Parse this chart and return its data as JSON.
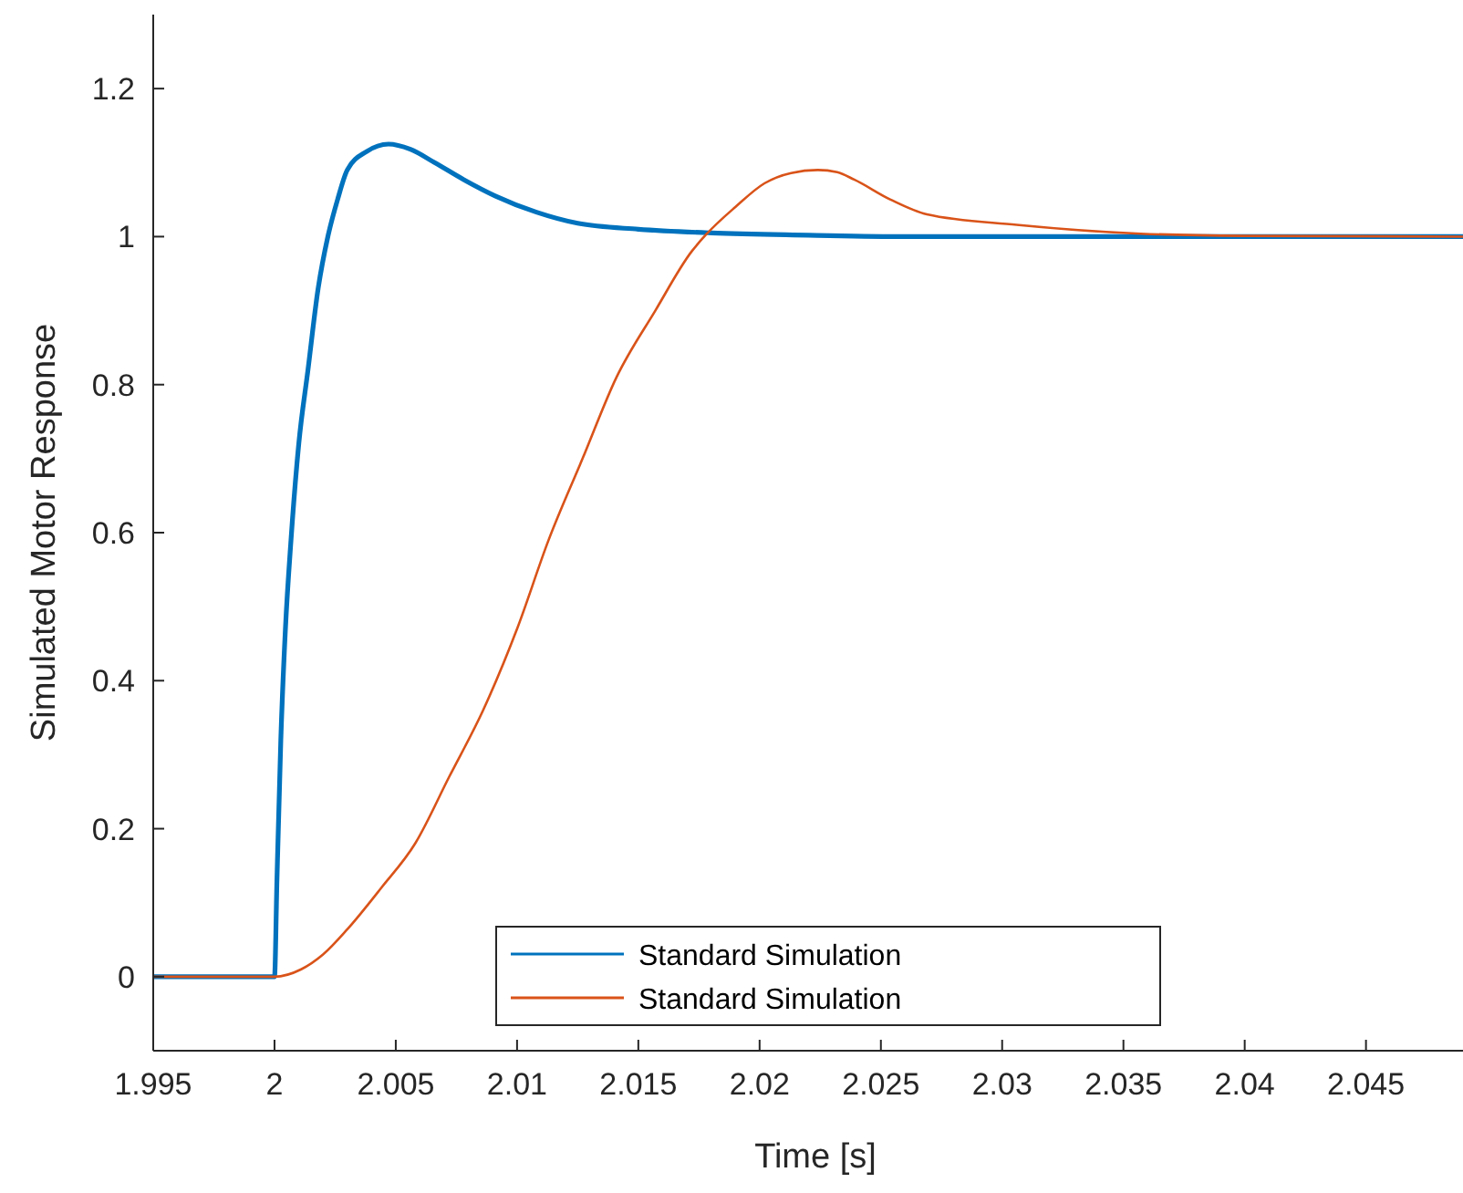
{
  "chart_data": {
    "type": "line",
    "xlabel": "Time [s]",
    "ylabel": "Simulated Motor Response",
    "xlim": [
      1.995,
      2.049
    ],
    "xticks": [
      1.995,
      2,
      2.005,
      2.01,
      2.015,
      2.02,
      2.025,
      2.03,
      2.035,
      2.04,
      2.045
    ],
    "ylim": [
      -0.1,
      1.3
    ],
    "yticks": [
      0,
      0.2,
      0.4,
      0.6,
      0.8,
      1,
      1.2
    ],
    "grid": false,
    "legend": "bottom",
    "line_style": "solid",
    "marker": "none",
    "series": [
      {
        "name": "Standard Simulation",
        "color": "#0072bd",
        "x": [
          1.995,
          2.0,
          2.0001,
          2.00026,
          2.00045,
          2.00068,
          2.001,
          2.00138,
          2.0018,
          2.0022,
          2.0026,
          2.003,
          2.0038,
          2.0047,
          2.0056,
          2.0066,
          2.0078,
          2.0091,
          2.0108,
          2.0125,
          2.015,
          2.018,
          2.022,
          2.026,
          2.03,
          2.04,
          2.049
        ],
        "values": [
          0,
          0,
          0.13,
          0.32,
          0.47,
          0.59,
          0.72,
          0.82,
          0.93,
          1.0,
          1.05,
          1.09,
          1.115,
          1.125,
          1.118,
          1.1,
          1.077,
          1.055,
          1.033,
          1.018,
          1.01,
          1.005,
          1.002,
          1.0,
          1.0,
          1.0,
          1.0
        ]
      },
      {
        "name": "Standard Simulation",
        "color": "#d95319",
        "x": [
          1.995,
          2.0,
          2.0011,
          2.002,
          2.003,
          2.0044,
          2.0058,
          2.0072,
          2.0086,
          2.01,
          2.0113,
          2.0127,
          2.0141,
          2.0157,
          2.0172,
          2.0178,
          2.019,
          2.0202,
          2.0213,
          2.0224,
          2.0232,
          2.0239,
          2.0254,
          2.0269,
          2.0306,
          2.0357,
          2.04,
          2.049
        ],
        "values": [
          0,
          0,
          0.01,
          0.03,
          0.064,
          0.12,
          0.18,
          0.27,
          0.36,
          0.47,
          0.59,
          0.7,
          0.81,
          0.9,
          0.98,
          1.003,
          1.04,
          1.072,
          1.086,
          1.09,
          1.087,
          1.077,
          1.05,
          1.03,
          1.016,
          1.004,
          1.001,
          1.0
        ]
      }
    ]
  }
}
